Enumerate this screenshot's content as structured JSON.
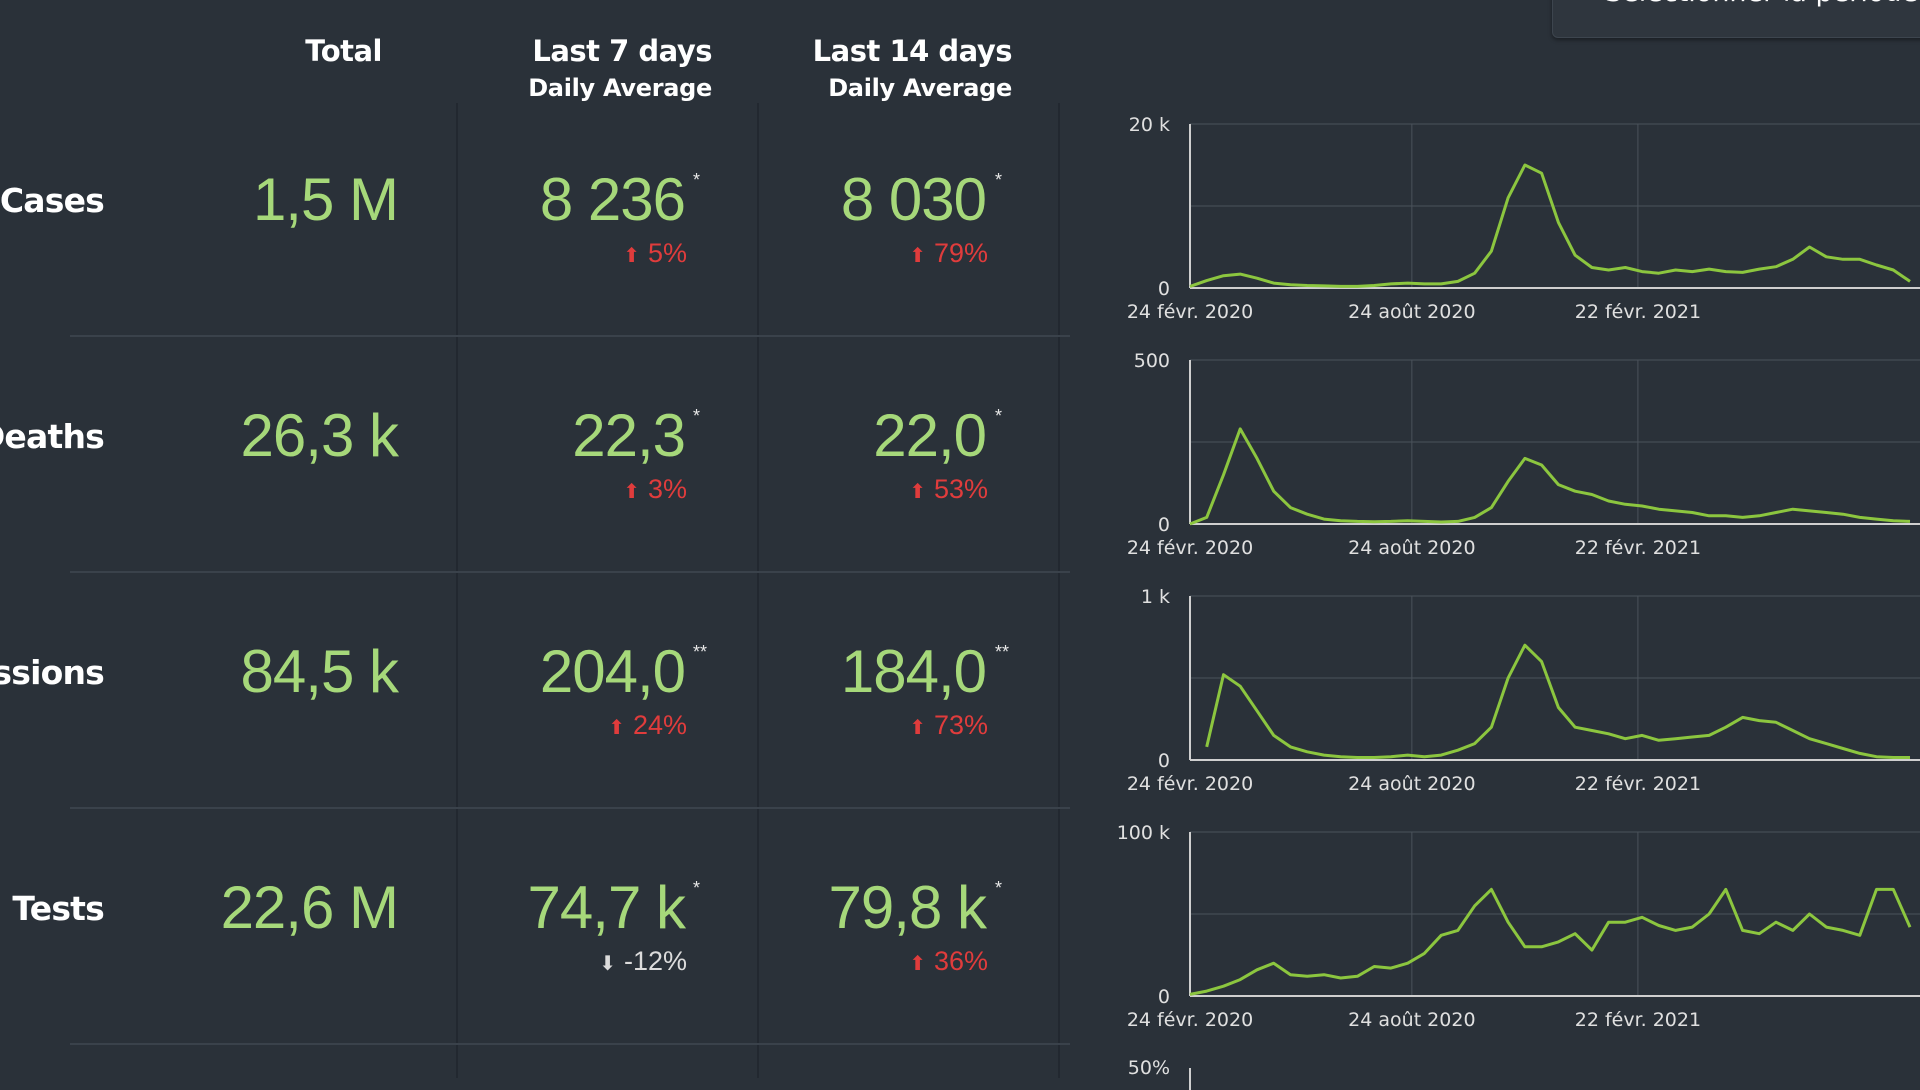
{
  "period_button": {
    "label": "Sélectionner la période"
  },
  "headers": {
    "total": "Total",
    "last7": "Last 7 days",
    "last7_sub": "Daily Average",
    "last14": "Last 14 days",
    "last14_sub": "Daily Average"
  },
  "rows": [
    {
      "label": "Cases",
      "total": "1,5 M",
      "avg7": "8 236",
      "avg7_mark": "*",
      "chg7": "5%",
      "chg7_dir": "up",
      "avg14": "8 030",
      "avg14_mark": "*",
      "chg14": "79%",
      "chg14_dir": "up"
    },
    {
      "label": "Deaths",
      "total": "26,3 k",
      "avg7": "22,3",
      "avg7_mark": "*",
      "chg7": "3%",
      "chg7_dir": "up",
      "avg14": "22,0",
      "avg14_mark": "*",
      "chg14": "53%",
      "chg14_dir": "up"
    },
    {
      "label": "issions",
      "total": "84,5 k",
      "avg7": "204,0",
      "avg7_mark": "**",
      "chg7": "24%",
      "chg7_dir": "up",
      "avg14": "184,0",
      "avg14_mark": "**",
      "chg14": "73%",
      "chg14_dir": "up"
    },
    {
      "label": "Tests",
      "total": "22,6 M",
      "avg7": "74,7 k",
      "avg7_mark": "*",
      "chg7": "-12%",
      "chg7_dir": "down",
      "avg14": "79,8 k",
      "avg14_mark": "*",
      "chg14": "36%",
      "chg14_dir": "up"
    }
  ],
  "colors": {
    "value": "#a6d87a",
    "increase": "#e03c3c",
    "neutral": "#dcdcdc",
    "line": "#8cc63f",
    "background": "#2a3139"
  },
  "chart_data": [
    {
      "type": "line",
      "ymax_label": "20 k",
      "ymin_label": "0",
      "xticks": [
        "24 févr. 2020",
        "24 août 2020",
        "22 févr. 2021"
      ],
      "ylim": [
        0,
        20000
      ],
      "x": [
        0,
        2,
        4,
        6,
        8,
        10,
        12,
        14,
        16,
        18,
        20,
        22,
        24,
        26,
        28,
        30,
        32,
        34,
        36,
        38,
        40,
        42,
        44,
        46,
        48,
        50,
        52,
        54,
        56,
        58,
        60,
        62,
        64,
        66,
        68,
        70,
        72,
        74,
        76,
        78,
        80,
        82,
        84,
        86
      ],
      "values": [
        200,
        900,
        1500,
        1700,
        1200,
        600,
        400,
        300,
        250,
        200,
        200,
        300,
        500,
        600,
        500,
        500,
        800,
        1800,
        4500,
        11000,
        15000,
        14000,
        8000,
        4000,
        2500,
        2200,
        2500,
        2000,
        1800,
        2200,
        2000,
        2300,
        2000,
        1900,
        2300,
        2600,
        3500,
        5000,
        3800,
        3500,
        3500,
        2800,
        2200,
        800
      ]
    },
    {
      "type": "line",
      "ymax_label": "500",
      "ymin_label": "0",
      "xticks": [
        "24 févr. 2020",
        "24 août 2020",
        "22 févr. 2021"
      ],
      "ylim": [
        0,
        500
      ],
      "x": [
        0,
        2,
        4,
        6,
        8,
        10,
        12,
        14,
        16,
        18,
        20,
        22,
        24,
        26,
        28,
        30,
        32,
        34,
        36,
        38,
        40,
        42,
        44,
        46,
        48,
        50,
        52,
        54,
        56,
        58,
        60,
        62,
        64,
        66,
        68,
        70,
        72,
        74,
        76,
        78,
        80,
        82,
        84,
        86
      ],
      "values": [
        0,
        20,
        150,
        290,
        200,
        100,
        50,
        30,
        15,
        10,
        8,
        7,
        8,
        10,
        8,
        6,
        8,
        20,
        50,
        130,
        200,
        180,
        120,
        100,
        90,
        70,
        60,
        55,
        45,
        40,
        35,
        25,
        25,
        20,
        25,
        35,
        45,
        40,
        35,
        30,
        20,
        15,
        10,
        8
      ]
    },
    {
      "type": "line",
      "ymax_label": "1 k",
      "ymin_label": "0",
      "xticks": [
        "24 févr. 2020",
        "24 août 2020",
        "22 févr. 2021"
      ],
      "ylim": [
        0,
        1000
      ],
      "x": [
        2,
        4,
        6,
        8,
        10,
        12,
        14,
        16,
        18,
        20,
        22,
        24,
        26,
        28,
        30,
        32,
        34,
        36,
        38,
        40,
        42,
        44,
        46,
        48,
        50,
        52,
        54,
        56,
        58,
        60,
        62,
        64,
        66,
        68,
        70,
        72,
        74,
        76,
        78,
        80,
        82,
        84,
        86
      ],
      "values": [
        80,
        520,
        450,
        300,
        150,
        80,
        50,
        30,
        20,
        15,
        15,
        20,
        30,
        20,
        30,
        60,
        100,
        200,
        500,
        700,
        600,
        320,
        200,
        180,
        160,
        130,
        150,
        120,
        130,
        140,
        150,
        200,
        260,
        240,
        230,
        180,
        130,
        100,
        70,
        40,
        20,
        15,
        15
      ]
    },
    {
      "type": "line",
      "ymax_label": "100 k",
      "ymin_label": "0",
      "xticks": [
        "24 févr. 2020",
        "24 août 2020",
        "22 févr. 2021"
      ],
      "ylim": [
        0,
        100000
      ],
      "x": [
        0,
        2,
        4,
        6,
        8,
        10,
        12,
        14,
        16,
        18,
        20,
        22,
        24,
        26,
        28,
        30,
        32,
        34,
        36,
        38,
        40,
        42,
        44,
        46,
        48,
        50,
        52,
        54,
        56,
        58,
        60,
        62,
        64,
        66,
        68,
        70,
        72,
        74,
        76,
        78,
        80,
        82,
        84,
        86
      ],
      "values": [
        1000,
        3000,
        6000,
        10000,
        16000,
        20000,
        13000,
        12000,
        13000,
        11000,
        12000,
        18000,
        17000,
        20000,
        26000,
        37000,
        40000,
        55000,
        65000,
        45000,
        30000,
        30000,
        33000,
        38000,
        28000,
        45000,
        45000,
        48000,
        43000,
        40000,
        42000,
        50000,
        65000,
        40000,
        38000,
        45000,
        40000,
        50000,
        42000,
        40000,
        37000,
        65000,
        65000,
        42000
      ]
    }
  ]
}
